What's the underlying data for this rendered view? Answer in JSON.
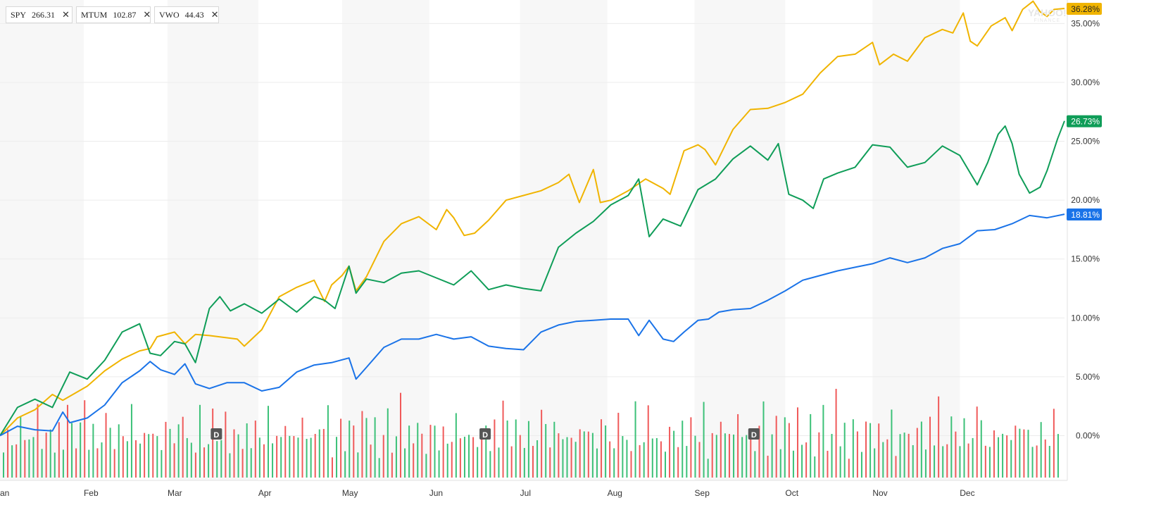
{
  "legend": [
    {
      "symbol": "SPY",
      "price": "266.31",
      "color": "#1a73e8"
    },
    {
      "symbol": "MTUM",
      "price": "102.87",
      "color": "#f0b400"
    },
    {
      "symbol": "VWO",
      "price": "44.43",
      "color": "#0f9d58"
    }
  ],
  "watermark": {
    "brand": "YAHOO!",
    "sub": "FINANCE"
  },
  "chart_data": {
    "type": "line",
    "x_months": [
      "Jan",
      "Feb",
      "Mar",
      "Apr",
      "May",
      "Jun",
      "Jul",
      "Aug",
      "Sep",
      "Oct",
      "Nov",
      "Dec"
    ],
    "xlabels": [
      "an",
      "Feb",
      "Mar",
      "Apr",
      "May",
      "Jun",
      "Jul",
      "Aug",
      "Sep",
      "Oct",
      "Nov",
      "Dec"
    ],
    "y_ticks": [
      "0.00%",
      "5.00%",
      "10.00%",
      "15.00%",
      "20.00%",
      "25.00%",
      "30.00%",
      "35.00%"
    ],
    "ylim": [
      -3.8,
      37
    ],
    "grid": true,
    "series": [
      {
        "name": "MTUM",
        "color": "#f0b400",
        "final_label": "36.28%",
        "points": [
          [
            0,
            0
          ],
          [
            0.5,
            1.5
          ],
          [
            1,
            2.2
          ],
          [
            1.5,
            3.5
          ],
          [
            1.8,
            3.0
          ],
          [
            2.5,
            4.2
          ],
          [
            3,
            5.5
          ],
          [
            3.5,
            6.5
          ],
          [
            4,
            7.2
          ],
          [
            4.3,
            7.4
          ],
          [
            4.5,
            8.4
          ],
          [
            5,
            8.8
          ],
          [
            5.3,
            7.8
          ],
          [
            5.6,
            8.6
          ],
          [
            6,
            8.5
          ],
          [
            6.8,
            8.2
          ],
          [
            7,
            7.6
          ],
          [
            7.5,
            9.0
          ],
          [
            8,
            11.8
          ],
          [
            8.5,
            12.6
          ],
          [
            9,
            13.2
          ],
          [
            9.3,
            11.4
          ],
          [
            9.5,
            12.8
          ],
          [
            9.8,
            13.6
          ],
          [
            10,
            14.4
          ],
          [
            10.2,
            12.3
          ],
          [
            10.5,
            13.5
          ],
          [
            11,
            16.5
          ],
          [
            11.5,
            18.0
          ],
          [
            12,
            18.6
          ],
          [
            12.5,
            17.5
          ],
          [
            12.8,
            19.2
          ],
          [
            13,
            18.5
          ],
          [
            13.3,
            17.0
          ],
          [
            13.6,
            17.2
          ],
          [
            14,
            18.3
          ],
          [
            14.5,
            20.0
          ],
          [
            15,
            20.4
          ],
          [
            15.5,
            20.8
          ],
          [
            16,
            21.5
          ],
          [
            16.3,
            22.2
          ],
          [
            16.6,
            19.8
          ],
          [
            17,
            22.6
          ],
          [
            17.2,
            19.8
          ],
          [
            17.5,
            20.0
          ],
          [
            18,
            20.8
          ],
          [
            18.5,
            21.8
          ],
          [
            19,
            21.0
          ],
          [
            19.2,
            20.5
          ],
          [
            19.6,
            24.2
          ],
          [
            20,
            24.7
          ],
          [
            20.2,
            24.3
          ],
          [
            20.5,
            23.0
          ],
          [
            21,
            26.0
          ],
          [
            21.5,
            27.7
          ],
          [
            22,
            27.8
          ],
          [
            22.5,
            28.3
          ],
          [
            23,
            29.0
          ],
          [
            23.5,
            30.8
          ],
          [
            24,
            32.2
          ],
          [
            24.5,
            32.4
          ],
          [
            25,
            33.4
          ],
          [
            25.2,
            31.5
          ],
          [
            25.6,
            32.4
          ],
          [
            26,
            31.8
          ],
          [
            26.5,
            33.8
          ],
          [
            27,
            34.5
          ],
          [
            27.3,
            34.2
          ],
          [
            27.6,
            35.9
          ],
          [
            27.8,
            33.5
          ],
          [
            28,
            33.1
          ],
          [
            28.4,
            34.8
          ],
          [
            28.8,
            35.5
          ],
          [
            29,
            34.4
          ],
          [
            29.3,
            36.2
          ],
          [
            29.6,
            36.9
          ],
          [
            29.8,
            36.0
          ],
          [
            30,
            35.6
          ],
          [
            30.2,
            36.2
          ],
          [
            30.5,
            36.28
          ]
        ]
      },
      {
        "name": "VWO",
        "color": "#0f9d58",
        "final_label": "26.73%",
        "points": [
          [
            0,
            0
          ],
          [
            0.5,
            2.4
          ],
          [
            1,
            3.1
          ],
          [
            1.5,
            2.4
          ],
          [
            2,
            5.4
          ],
          [
            2.5,
            4.8
          ],
          [
            3,
            6.4
          ],
          [
            3.5,
            8.8
          ],
          [
            4,
            9.5
          ],
          [
            4.3,
            7.0
          ],
          [
            4.6,
            6.8
          ],
          [
            5,
            8.0
          ],
          [
            5.3,
            7.8
          ],
          [
            5.6,
            6.2
          ],
          [
            6,
            10.8
          ],
          [
            6.3,
            11.8
          ],
          [
            6.6,
            10.6
          ],
          [
            7,
            11.2
          ],
          [
            7.5,
            10.4
          ],
          [
            8,
            11.6
          ],
          [
            8.5,
            10.5
          ],
          [
            9,
            11.8
          ],
          [
            9.3,
            11.5
          ],
          [
            9.6,
            10.8
          ],
          [
            10,
            14.4
          ],
          [
            10.2,
            12.1
          ],
          [
            10.5,
            13.3
          ],
          [
            11,
            13.0
          ],
          [
            11.5,
            13.8
          ],
          [
            12,
            14.0
          ],
          [
            12.5,
            13.4
          ],
          [
            13,
            12.8
          ],
          [
            13.5,
            14.0
          ],
          [
            14,
            12.4
          ],
          [
            14.5,
            12.8
          ],
          [
            15,
            12.5
          ],
          [
            15.5,
            12.3
          ],
          [
            16,
            16.0
          ],
          [
            16.5,
            17.2
          ],
          [
            17,
            18.2
          ],
          [
            17.5,
            19.6
          ],
          [
            18,
            20.4
          ],
          [
            18.3,
            21.8
          ],
          [
            18.6,
            16.9
          ],
          [
            19,
            18.4
          ],
          [
            19.5,
            17.8
          ],
          [
            20,
            20.9
          ],
          [
            20.5,
            21.8
          ],
          [
            21,
            23.5
          ],
          [
            21.5,
            24.6
          ],
          [
            22,
            23.4
          ],
          [
            22.3,
            24.8
          ],
          [
            22.6,
            20.5
          ],
          [
            23,
            20.0
          ],
          [
            23.3,
            19.3
          ],
          [
            23.6,
            21.8
          ],
          [
            24,
            22.3
          ],
          [
            24.5,
            22.8
          ],
          [
            25,
            24.7
          ],
          [
            25.5,
            24.5
          ],
          [
            26,
            22.8
          ],
          [
            26.5,
            23.2
          ],
          [
            27,
            24.6
          ],
          [
            27.5,
            23.8
          ],
          [
            28,
            21.3
          ],
          [
            28.3,
            23.2
          ],
          [
            28.6,
            25.6
          ],
          [
            28.8,
            26.3
          ],
          [
            29,
            24.8
          ],
          [
            29.2,
            22.2
          ],
          [
            29.5,
            20.6
          ],
          [
            29.8,
            21.1
          ],
          [
            30,
            22.5
          ],
          [
            30.3,
            25.2
          ],
          [
            30.5,
            26.73
          ]
        ]
      },
      {
        "name": "SPY",
        "color": "#1a73e8",
        "final_label": "18.81%",
        "points": [
          [
            0,
            0
          ],
          [
            0.5,
            0.8
          ],
          [
            1,
            0.5
          ],
          [
            1.5,
            0.4
          ],
          [
            1.8,
            2.0
          ],
          [
            2,
            1.1
          ],
          [
            2.5,
            1.5
          ],
          [
            3,
            2.6
          ],
          [
            3.5,
            4.5
          ],
          [
            4,
            5.5
          ],
          [
            4.3,
            6.3
          ],
          [
            4.6,
            5.6
          ],
          [
            5,
            5.2
          ],
          [
            5.3,
            6.1
          ],
          [
            5.6,
            4.4
          ],
          [
            6,
            4.0
          ],
          [
            6.5,
            4.5
          ],
          [
            7,
            4.5
          ],
          [
            7.5,
            3.8
          ],
          [
            8,
            4.1
          ],
          [
            8.5,
            5.4
          ],
          [
            9,
            6.0
          ],
          [
            9.5,
            6.2
          ],
          [
            10,
            6.6
          ],
          [
            10.2,
            4.8
          ],
          [
            10.5,
            5.8
          ],
          [
            11,
            7.5
          ],
          [
            11.5,
            8.2
          ],
          [
            12,
            8.2
          ],
          [
            12.5,
            8.6
          ],
          [
            13,
            8.2
          ],
          [
            13.5,
            8.4
          ],
          [
            14,
            7.6
          ],
          [
            14.5,
            7.4
          ],
          [
            15,
            7.3
          ],
          [
            15.5,
            8.8
          ],
          [
            16,
            9.4
          ],
          [
            16.5,
            9.7
          ],
          [
            17,
            9.8
          ],
          [
            17.5,
            9.9
          ],
          [
            18,
            9.9
          ],
          [
            18.3,
            8.5
          ],
          [
            18.6,
            9.8
          ],
          [
            19,
            8.2
          ],
          [
            19.3,
            8.0
          ],
          [
            19.6,
            8.8
          ],
          [
            20,
            9.8
          ],
          [
            20.3,
            9.9
          ],
          [
            20.6,
            10.5
          ],
          [
            21,
            10.7
          ],
          [
            21.5,
            10.8
          ],
          [
            22,
            11.5
          ],
          [
            22.5,
            12.3
          ],
          [
            23,
            13.2
          ],
          [
            23.5,
            13.6
          ],
          [
            24,
            14.0
          ],
          [
            24.5,
            14.3
          ],
          [
            25,
            14.6
          ],
          [
            25.5,
            15.1
          ],
          [
            26,
            14.7
          ],
          [
            26.5,
            15.1
          ],
          [
            27,
            15.9
          ],
          [
            27.5,
            16.3
          ],
          [
            28,
            17.4
          ],
          [
            28.5,
            17.5
          ],
          [
            29,
            18.0
          ],
          [
            29.5,
            18.7
          ],
          [
            30,
            18.5
          ],
          [
            30.5,
            18.81
          ]
        ]
      }
    ],
    "volume_bars": [
      {
        "dir": "up",
        "h": 0.36
      },
      {
        "dir": "down",
        "h": 0.52
      },
      {
        "dir": "up",
        "h": 0.28
      },
      {
        "dir": "down",
        "h": 0.44
      },
      {
        "dir": "up",
        "h": 0.62
      },
      {
        "dir": "down",
        "h": 0.31
      },
      {
        "dir": "up",
        "h": 0.47
      },
      {
        "dir": "up",
        "h": 0.39
      },
      {
        "dir": "down",
        "h": 0.58
      },
      {
        "dir": "up",
        "h": 0.33
      },
      {
        "dir": "down",
        "h": 0.41
      },
      {
        "dir": "up",
        "h": 0.69
      },
      {
        "dir": "up",
        "h": 0.27
      },
      {
        "dir": "down",
        "h": 0.48
      },
      {
        "dir": "up",
        "h": 0.37
      },
      {
        "dir": "down",
        "h": 0.74
      },
      {
        "dir": "up",
        "h": 0.45
      },
      {
        "dir": "down",
        "h": 0.36
      },
      {
        "dir": "up",
        "h": 0.53
      },
      {
        "dir": "down",
        "h": 0.61
      },
      {
        "dir": "up",
        "h": 0.32
      },
      {
        "dir": "up",
        "h": 0.49
      },
      {
        "dir": "down",
        "h": 0.42
      },
      {
        "dir": "up",
        "h": 0.38
      },
      {
        "dir": "down",
        "h": 0.56
      },
      {
        "dir": "up",
        "h": 0.66
      },
      {
        "dir": "down",
        "h": 0.29
      },
      {
        "dir": "up",
        "h": 0.44
      },
      {
        "dir": "down",
        "h": 0.51
      },
      {
        "dir": "up",
        "h": 0.35
      },
      {
        "dir": "up",
        "h": 0.58
      },
      {
        "dir": "down",
        "h": 0.43
      },
      {
        "dir": "up",
        "h": 0.31
      },
      {
        "dir": "down",
        "h": 0.64
      },
      {
        "dir": "up",
        "h": 0.47
      },
      {
        "dir": "down",
        "h": 0.38
      },
      {
        "dir": "up",
        "h": 0.55
      },
      {
        "dir": "up",
        "h": 0.28
      },
      {
        "dir": "down",
        "h": 0.46
      },
      {
        "dir": "up",
        "h": 0.6
      },
      {
        "dir": "down",
        "h": 0.33
      },
      {
        "dir": "up",
        "h": 0.42
      },
      {
        "dir": "down",
        "h": 0.7
      },
      {
        "dir": "up",
        "h": 0.36
      },
      {
        "dir": "up",
        "h": 0.5
      },
      {
        "dir": "down",
        "h": 0.27
      },
      {
        "dir": "up",
        "h": 0.63
      },
      {
        "dir": "down",
        "h": 0.4
      },
      {
        "dir": "up",
        "h": 0.34
      },
      {
        "dir": "down",
        "h": 0.57
      },
      {
        "dir": "up",
        "h": 0.45
      }
    ],
    "dividend_markers": [
      {
        "x": 6.2,
        "label": "D"
      },
      {
        "x": 13.9,
        "label": "D"
      },
      {
        "x": 21.6,
        "label": "D"
      }
    ]
  }
}
